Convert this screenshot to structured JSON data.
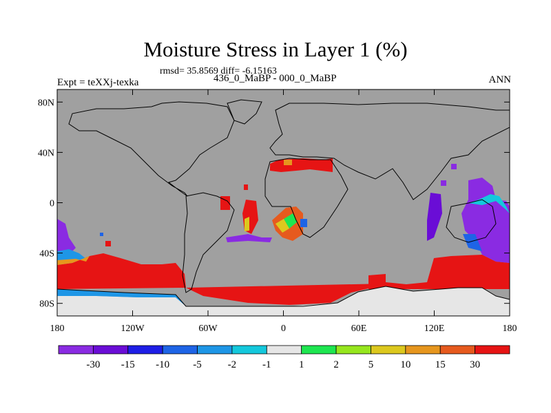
{
  "chart_data": {
    "type": "heatmap",
    "title": "Moisture Stress in Layer 1 (%)",
    "stats_line": "rmsd= 35.8569 diff= -6.15163",
    "left_label": "Expt = teXXj-texka",
    "subtitle": "436_0_MaBP - 000_0_MaBP",
    "right_label": "ANN",
    "x_ticks": [
      "180",
      "120W",
      "60W",
      "0",
      "60E",
      "120E",
      "180"
    ],
    "x_tick_values": [
      -180,
      -120,
      -60,
      0,
      60,
      120,
      180
    ],
    "y_ticks": [
      "80N",
      "40N",
      "0",
      "40S",
      "80S"
    ],
    "y_tick_values": [
      80,
      40,
      0,
      -40,
      -80
    ],
    "xlim": [
      -180,
      180
    ],
    "ylim": [
      -90,
      90
    ],
    "missing_color": "#a0a0a0",
    "colorbar": {
      "labels": [
        "-30",
        "-15",
        "-10",
        "-5",
        "-2",
        "-1",
        "1",
        "2",
        "5",
        "10",
        "15",
        "30"
      ],
      "colors": [
        "#8a2be2",
        "#6a0dd6",
        "#1e1ee6",
        "#1e64e6",
        "#1e96e6",
        "#14c8dc",
        "#e6e6e6",
        "#1ee650",
        "#96e61e",
        "#dcc81e",
        "#e6961e",
        "#e65a1e",
        "#e61414"
      ]
    },
    "regions": [
      {
        "name": "southern-ocean-red",
        "value": 30,
        "lon": [
          -180,
          180
        ],
        "lat": [
          -72,
          -45
        ]
      },
      {
        "name": "antarctica",
        "value": 0,
        "lon": [
          -180,
          180
        ],
        "lat": [
          -90,
          -72
        ]
      },
      {
        "name": "south-pacific-negative",
        "value": -30,
        "lon": [
          -180,
          -165
        ],
        "lat": [
          -45,
          -10
        ]
      },
      {
        "name": "australia-negative",
        "value": -30,
        "lon": [
          140,
          180
        ],
        "lat": [
          -40,
          0
        ]
      },
      {
        "name": "north-africa-red",
        "value": 30,
        "lon": [
          -5,
          30
        ],
        "lat": [
          28,
          37
        ]
      },
      {
        "name": "south-atlantic-red",
        "value": 30,
        "lon": [
          -30,
          -15
        ],
        "lat": [
          -30,
          0
        ]
      }
    ]
  }
}
